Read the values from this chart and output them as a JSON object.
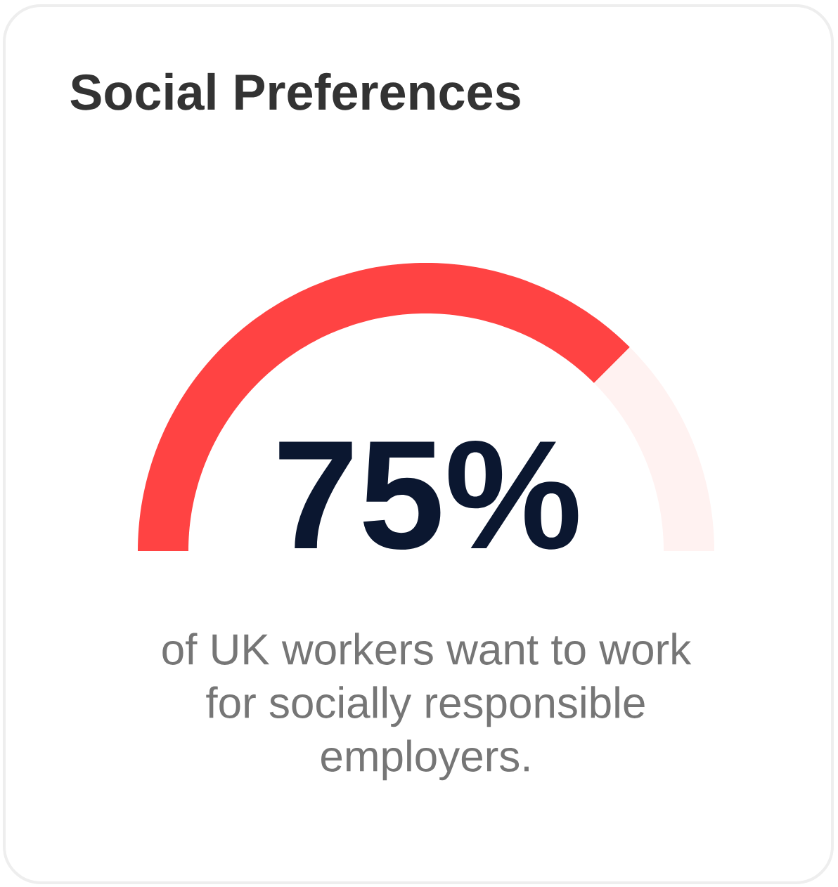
{
  "chart_data": {
    "type": "donut",
    "title": "Social Preferences",
    "categories": [
      null,
      null
    ],
    "values": [
      75,
      25
    ],
    "colors": [
      "#ff4343",
      "#fff2f1"
    ],
    "value_labels": [
      "75%",
      null
    ],
    "annotations": [
      "of UK workers want to work for socially responsible employers."
    ]
  }
}
